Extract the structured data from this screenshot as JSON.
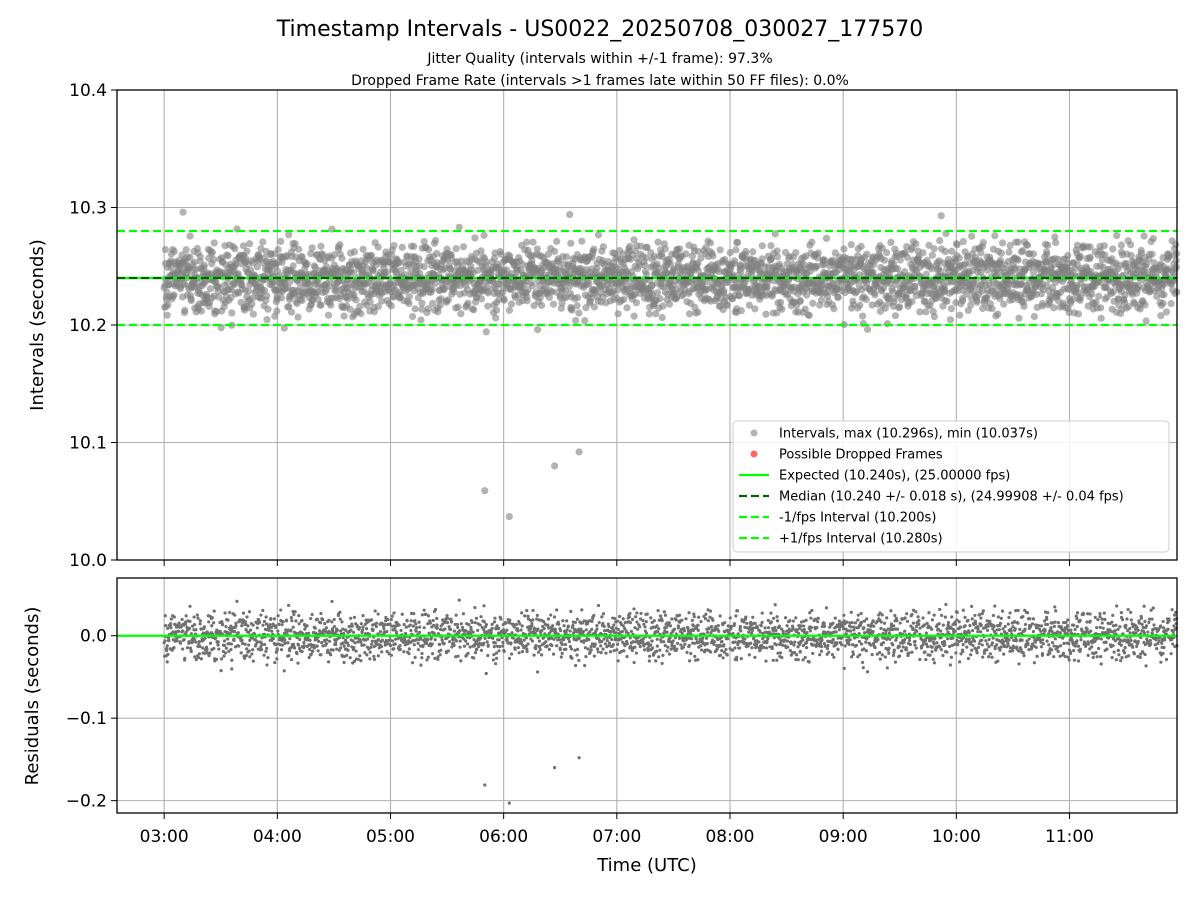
{
  "title": "Timestamp Intervals - US0022_20250708_030027_177570",
  "subtitle_1": "Jitter Quality (intervals within +/-1 frame): 97.3%",
  "subtitle_2": "Dropped Frame Rate (intervals >1 frames late within 50 FF files): 0.0%",
  "colors": {
    "points": "#808080",
    "dropped": "#ff0000",
    "expected": "#00ff00",
    "median": "#006400",
    "grid": "#b0b0b0"
  },
  "chart_data": [
    {
      "type": "scatter",
      "panel": "intervals",
      "ylabel": "Intervals (seconds)",
      "ylim": [
        10.0,
        10.4
      ],
      "yticks": [
        "10.0",
        "10.1",
        "10.2",
        "10.3",
        "10.4"
      ],
      "xlim": [
        "02:35",
        "11:57"
      ],
      "grid": true,
      "legend_position": "lower right",
      "reference_lines": {
        "expected": 10.24,
        "median": 10.24,
        "minus_1_fps": 10.2,
        "plus_1_fps": 10.28
      },
      "legend": [
        "Intervals, max (10.296s), min (10.037s)",
        "Possible Dropped Frames",
        "Expected (10.240s), (25.00000 fps)",
        "Median (10.240 +/- 0.018 s), (24.99908 +/- 0.04 fps)",
        "-1/fps Interval (10.200s)",
        "+1/fps Interval (10.280s)"
      ],
      "series": [
        {
          "name": "Intervals, max (10.296s), min (10.037s)",
          "distribution": {
            "time_start": "03:00",
            "time_end": "11:57",
            "center": 10.24,
            "spread_std": 0.018,
            "point_count": 3150
          },
          "outliers": [
            {
              "x": "05:50",
              "y": 10.059
            },
            {
              "x": "06:03",
              "y": 10.037
            },
            {
              "x": "06:27",
              "y": 10.08
            },
            {
              "x": "06:40",
              "y": 10.092
            },
            {
              "x": "03:10",
              "y": 10.296
            },
            {
              "x": "06:35",
              "y": 10.294
            },
            {
              "x": "09:52",
              "y": 10.293
            }
          ]
        },
        {
          "name": "Possible Dropped Frames",
          "points": []
        }
      ]
    },
    {
      "type": "scatter",
      "panel": "residuals",
      "xlabel": "Time (UTC)",
      "ylabel": "Residuals (seconds)",
      "ylim": [
        -0.215,
        0.07
      ],
      "yticks": [
        "−0.2",
        "−0.1",
        "0.0"
      ],
      "xticks": [
        "03:00",
        "04:00",
        "05:00",
        "06:00",
        "07:00",
        "08:00",
        "09:00",
        "10:00",
        "11:00"
      ],
      "xlim": [
        "02:35",
        "11:57"
      ],
      "grid": true,
      "reference_line": 0.0,
      "series": [
        {
          "name": "Residuals",
          "distribution": {
            "time_start": "03:00",
            "time_end": "11:57",
            "center": 0.0,
            "spread_std": 0.018,
            "point_count": 3150
          },
          "outliers": [
            {
              "x": "05:50",
              "y": -0.181
            },
            {
              "x": "06:03",
              "y": -0.203
            },
            {
              "x": "06:27",
              "y": -0.16
            },
            {
              "x": "06:40",
              "y": -0.148
            }
          ]
        }
      ]
    }
  ]
}
